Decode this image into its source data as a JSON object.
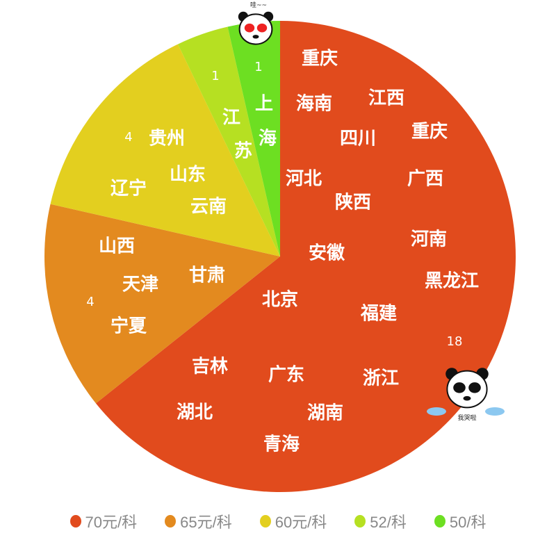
{
  "chart_data": {
    "type": "pie",
    "start": "top",
    "direction": "clockwise",
    "legend_position": "bottom",
    "slices": [
      {
        "name": "70元/科",
        "value": 18,
        "color": "#e14b1d",
        "labels": [
          "重庆",
          "海南",
          "江西",
          "四川",
          "重庆",
          "河北",
          "广西",
          "陕西",
          "河南",
          "安徽",
          "黑龙江",
          "北京",
          "福建",
          "吉林",
          "广东",
          "浙江",
          "湖北",
          "湖南",
          "青海"
        ]
      },
      {
        "name": "65元/科",
        "value": 4,
        "color": "#e38a1f",
        "labels": [
          "山西",
          "天津",
          "甘肃",
          "宁夏"
        ]
      },
      {
        "name": "60元/科",
        "value": 4,
        "color": "#e3cf1f",
        "labels": [
          "贵州",
          "辽宁",
          "山东",
          "云南"
        ]
      },
      {
        "name": "52/科",
        "value": 1,
        "color": "#b6e022",
        "labels": [
          "江",
          "苏"
        ]
      },
      {
        "name": "50/科",
        "value": 1,
        "color": "#6ddf22",
        "labels": [
          "上",
          "海"
        ]
      }
    ]
  },
  "stickers": {
    "top": "哇~~",
    "bottom": "我哭啦"
  }
}
